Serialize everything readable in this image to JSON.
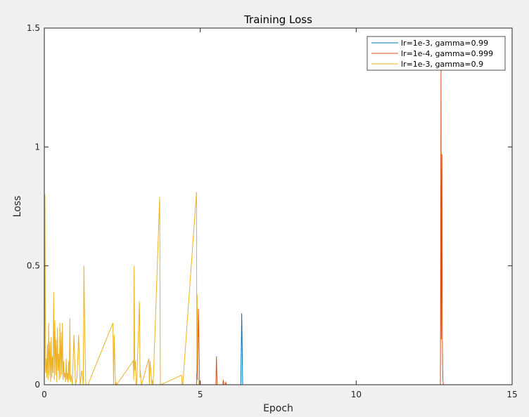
{
  "chart_data": {
    "type": "line",
    "title": "Training Loss",
    "xlabel": "Epoch",
    "ylabel": "Loss",
    "xlim": [
      0,
      15
    ],
    "ylim": [
      0,
      1.5
    ],
    "xticks": [
      0,
      5,
      10,
      15
    ],
    "xtick_labels": [
      "0",
      "5",
      "10",
      "15"
    ],
    "yticks": [
      0,
      0.5,
      1,
      1.5
    ],
    "ytick_labels": [
      "0",
      "0.5",
      "1",
      "1.5"
    ],
    "grid": false,
    "legend_position": "top-right",
    "series": [
      {
        "name": "lr=1e-3, gamma=0.99",
        "color": "#0072bd",
        "x": [
          0,
          6.3,
          6.33,
          6.36,
          15
        ],
        "y": [
          0,
          0,
          0.3,
          0,
          0
        ]
      },
      {
        "name": "lr=1e-4, gamma=0.999",
        "color": "#d95319",
        "x": [
          0,
          4.88,
          4.9,
          4.92,
          4.94,
          4.96,
          4.98,
          5.5,
          5.52,
          5.54,
          5.72,
          5.74,
          5.76,
          5.8,
          5.82,
          5.84,
          12.7,
          12.72,
          12.73,
          12.75,
          12.76,
          12.78,
          12.8,
          15
        ],
        "y": [
          0,
          0,
          0.15,
          0.02,
          0.32,
          0.18,
          0,
          0,
          0.12,
          0,
          0,
          0.02,
          0,
          0,
          0.01,
          0,
          0,
          1.35,
          0.19,
          0.97,
          0.24,
          0.02,
          0,
          0
        ]
      },
      {
        "name": "lr=1e-3, gamma=0.9",
        "color": "#edb120",
        "x": [
          0,
          0.02,
          0.04,
          0.06,
          0.08,
          0.1,
          0.12,
          0.14,
          0.16,
          0.18,
          0.2,
          0.22,
          0.24,
          0.26,
          0.28,
          0.3,
          0.32,
          0.34,
          0.36,
          0.38,
          0.4,
          0.42,
          0.44,
          0.46,
          0.48,
          0.5,
          0.52,
          0.54,
          0.56,
          0.58,
          0.6,
          0.62,
          0.64,
          0.66,
          0.68,
          0.7,
          0.72,
          0.74,
          0.76,
          0.78,
          0.8,
          0.82,
          0.84,
          0.86,
          0.88,
          0.9,
          0.95,
          1.0,
          1.05,
          1.1,
          1.15,
          1.2,
          1.25,
          1.27,
          1.3,
          1.33,
          1.4,
          2.2,
          2.22,
          2.24,
          2.28,
          2.3,
          2.32,
          2.85,
          2.87,
          2.88,
          2.9,
          2.92,
          2.94,
          2.96,
          3.05,
          3.07,
          3.08,
          3.1,
          3.12,
          3.35,
          3.37,
          3.39,
          3.45,
          3.47,
          3.49,
          3.7,
          3.72,
          3.74,
          4.4,
          4.42,
          4.44,
          4.88,
          4.89,
          4.9,
          4.91,
          4.93,
          4.95,
          4.97,
          5.0,
          15
        ],
        "y": [
          0,
          0.8,
          0.05,
          0.11,
          0.03,
          0.17,
          0.02,
          0.26,
          0.04,
          0.18,
          0.01,
          0.2,
          0.03,
          0.12,
          0.05,
          0.39,
          0.02,
          0.27,
          0.04,
          0.19,
          0.01,
          0.24,
          0.06,
          0.13,
          0.02,
          0.26,
          0.03,
          0.22,
          0.04,
          0.26,
          0.02,
          0.1,
          0.03,
          0.05,
          0.01,
          0.11,
          0.02,
          0.05,
          0.01,
          0.1,
          0.02,
          0.28,
          0.01,
          0.04,
          0.02,
          0,
          0.21,
          0,
          0.03,
          0.21,
          0,
          0.06,
          0,
          0.5,
          0.2,
          0,
          0,
          0.26,
          0,
          0.21,
          0,
          0.01,
          0,
          0.1,
          0.02,
          0.5,
          0.06,
          0.1,
          0,
          0,
          0.35,
          0.03,
          0.06,
          0.01,
          0,
          0.11,
          0,
          0.1,
          0,
          0.02,
          0,
          0.79,
          0,
          0,
          0.04,
          0,
          0,
          0.81,
          0.05,
          0.38,
          0.2,
          0.03,
          0,
          0,
          0,
          0
        ]
      }
    ]
  }
}
